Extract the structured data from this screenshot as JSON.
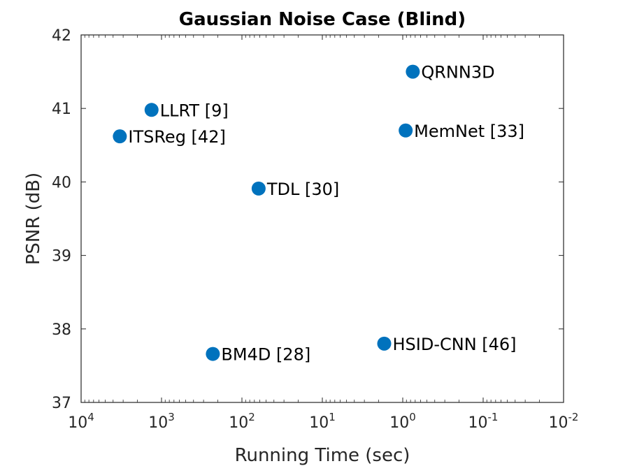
{
  "chart_data": {
    "type": "scatter",
    "title": "Gaussian Noise Case (Blind)",
    "xlabel": "Running Time (sec)",
    "ylabel": "PSNR (dB)",
    "x_scale": "log",
    "x_reversed": true,
    "xlim": [
      10000,
      0.01
    ],
    "ylim": [
      37,
      42
    ],
    "grid": false,
    "x_ticks": [
      {
        "base": "10",
        "exp": "4",
        "value": 10000
      },
      {
        "base": "10",
        "exp": "3",
        "value": 1000
      },
      {
        "base": "10",
        "exp": "2",
        "value": 100
      },
      {
        "base": "10",
        "exp": "1",
        "value": 10
      },
      {
        "base": "10",
        "exp": "0",
        "value": 1
      },
      {
        "base": "10",
        "exp": "-1",
        "value": 0.1
      },
      {
        "base": "10",
        "exp": "-2",
        "value": 0.01
      }
    ],
    "y_ticks": [
      {
        "label": "37",
        "value": 37
      },
      {
        "label": "38",
        "value": 38
      },
      {
        "label": "39",
        "value": 39
      },
      {
        "label": "40",
        "value": 40
      },
      {
        "label": "41",
        "value": 41
      },
      {
        "label": "42",
        "value": 42
      }
    ],
    "points": [
      {
        "label": "QRNN3D",
        "x": 0.75,
        "y": 41.5,
        "label_color": "#ff0000"
      },
      {
        "label": "LLRT [9]",
        "x": 1330,
        "y": 40.98,
        "label_color": "#000000"
      },
      {
        "label": "MemNet [33]",
        "x": 0.92,
        "y": 40.7,
        "label_color": "#000000"
      },
      {
        "label": "ITSReg [42]",
        "x": 3300,
        "y": 40.62,
        "label_color": "#000000"
      },
      {
        "label": "TDL [30]",
        "x": 62,
        "y": 39.91,
        "label_color": "#000000"
      },
      {
        "label": "HSID-CNN [46]",
        "x": 1.7,
        "y": 37.8,
        "label_color": "#000000"
      },
      {
        "label": "BM4D [28]",
        "x": 230,
        "y": 37.66,
        "label_color": "#000000"
      }
    ],
    "marker_color": "#0072bd"
  }
}
